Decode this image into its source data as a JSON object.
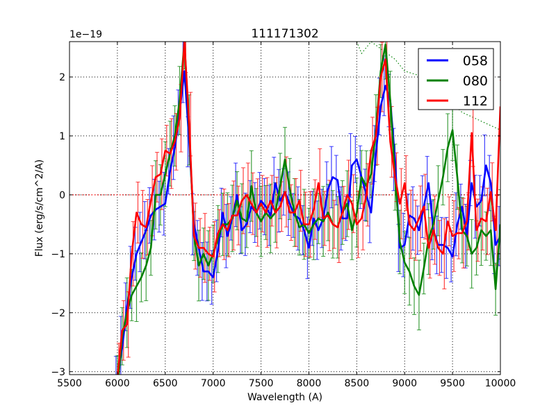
{
  "chart_data": {
    "type": "line",
    "title": "111171302",
    "xlabel": "Wavelength (A)",
    "ylabel": "Flux (erg/s/cm^2/A)",
    "y_offset_label": "1e−19",
    "xlim": [
      5500,
      10000
    ],
    "ylim": [
      -3.05,
      2.6
    ],
    "xticks": [
      5500,
      6000,
      6500,
      7000,
      7500,
      8000,
      8500,
      9000,
      9500,
      10000
    ],
    "xtick_labels": [
      "5500",
      "6000",
      "6500",
      "7000",
      "7500",
      "8000",
      "8500",
      "9000",
      "9500",
      "10000"
    ],
    "yticks": [
      -3,
      -2,
      -1,
      0,
      1,
      2
    ],
    "ytick_labels": [
      "−3",
      "−2",
      "−1",
      "0",
      "1",
      "2"
    ],
    "grid": true,
    "legend_position": "top-right",
    "x": [
      6000,
      6050,
      6100,
      6150,
      6200,
      6250,
      6300,
      6350,
      6400,
      6450,
      6500,
      6550,
      6600,
      6650,
      6700,
      6750,
      6800,
      6850,
      6900,
      6950,
      7000,
      7050,
      7100,
      7150,
      7200,
      7250,
      7300,
      7350,
      7400,
      7450,
      7500,
      7550,
      7600,
      7650,
      7700,
      7750,
      7800,
      7850,
      7900,
      7950,
      8000,
      8050,
      8100,
      8150,
      8200,
      8250,
      8300,
      8350,
      8400,
      8450,
      8500,
      8550,
      8600,
      8650,
      8700,
      8750,
      8800,
      8850,
      8900,
      8950,
      9000,
      9050,
      9100,
      9150,
      9200,
      9250,
      9300,
      9350,
      9400,
      9450,
      9500,
      9550,
      9600,
      9650,
      9700,
      9750,
      9800,
      9850,
      9900,
      9950,
      10000
    ],
    "series": [
      {
        "name": "058",
        "color": "#0000ff",
        "yerr_typical": 0.45,
        "values": [
          -3.1,
          -2.6,
          -1.9,
          -1.4,
          -1.0,
          -0.8,
          -0.6,
          -0.35,
          -0.25,
          -0.2,
          -0.15,
          0.4,
          0.8,
          1.4,
          2.1,
          0.9,
          -0.5,
          -0.9,
          -1.3,
          -1.3,
          -1.4,
          -0.95,
          -0.3,
          -0.7,
          -0.4,
          0.0,
          -0.6,
          -0.5,
          -0.2,
          -0.3,
          -0.1,
          -0.2,
          -0.35,
          0.2,
          -0.1,
          0.05,
          -0.15,
          -0.35,
          -0.4,
          -0.6,
          -0.9,
          -0.4,
          -0.6,
          -0.4,
          0.1,
          0.3,
          0.25,
          -0.4,
          -0.4,
          0.5,
          0.6,
          0.3,
          0.0,
          -0.3,
          0.7,
          1.5,
          1.85,
          1.6,
          0.6,
          -0.9,
          -0.85,
          -0.35,
          -0.4,
          -0.6,
          -0.2,
          0.2,
          -0.6,
          -0.85,
          -0.85,
          -0.9,
          -1.05,
          -0.5,
          -0.2,
          -0.7,
          0.2,
          -0.2,
          -0.1,
          0.5,
          0.2,
          -0.85,
          -0.7
        ]
      },
      {
        "name": "080",
        "color": "#008000",
        "yerr_typical": 0.5,
        "values": [
          -3.3,
          -2.4,
          -2.0,
          -1.7,
          -1.55,
          -1.4,
          -1.2,
          -0.9,
          0.0,
          0.0,
          0.35,
          0.7,
          1.0,
          1.6,
          2.6,
          1.1,
          -0.7,
          -1.2,
          -1.0,
          -1.2,
          -1.0,
          -0.75,
          -0.5,
          -0.5,
          -0.4,
          -0.1,
          -0.4,
          -0.45,
          0.15,
          -0.3,
          -0.45,
          -0.3,
          -0.4,
          -0.3,
          0.15,
          0.6,
          0.1,
          -0.3,
          -0.55,
          -0.5,
          -0.65,
          -0.5,
          -0.4,
          -0.45,
          -0.3,
          -0.5,
          -0.55,
          -0.3,
          -0.15,
          -0.6,
          -0.3,
          0.3,
          0.15,
          0.35,
          1.1,
          2.1,
          2.55,
          1.6,
          0.3,
          -0.8,
          -1.15,
          -1.3,
          -1.55,
          -1.7,
          -1.25,
          -0.75,
          -0.5,
          -0.1,
          0.3,
          0.8,
          1.1,
          0.3,
          -0.6,
          -0.7,
          -1.0,
          -0.9,
          -0.6,
          -0.7,
          -0.6,
          -1.6,
          -0.5
        ]
      },
      {
        "name": "112",
        "color": "#ff0000",
        "yerr_typical": 0.5,
        "values": [
          -3.1,
          -2.3,
          -2.2,
          -1.0,
          -0.3,
          -0.5,
          -0.55,
          -0.1,
          0.3,
          0.35,
          0.75,
          0.7,
          0.9,
          1.3,
          2.6,
          1.2,
          -0.7,
          -0.9,
          -0.9,
          -1.0,
          -1.05,
          -0.65,
          -0.5,
          -0.6,
          -0.35,
          -0.35,
          -0.1,
          0.0,
          -0.15,
          -0.3,
          -0.15,
          -0.3,
          -0.1,
          -0.3,
          -0.2,
          0.05,
          -0.3,
          -0.3,
          -0.1,
          -0.5,
          -0.5,
          -0.25,
          0.2,
          -0.4,
          -0.35,
          -0.5,
          -0.55,
          -0.3,
          0.0,
          -0.15,
          -0.5,
          -0.4,
          0.0,
          0.75,
          1.0,
          2.0,
          2.3,
          0.9,
          0.3,
          -0.15,
          0.2,
          -0.5,
          -0.6,
          -0.4,
          -0.2,
          -0.9,
          -0.6,
          -0.9,
          -1.0,
          -0.45,
          -0.7,
          -0.65,
          -0.65,
          -0.45,
          1.05,
          -0.6,
          -0.4,
          -0.45,
          0.05,
          -0.6,
          1.5
        ]
      }
    ],
    "reference_lines": [
      {
        "name": "zero-line",
        "color": "#ff0000",
        "style": "dotted",
        "x": [
          5500,
          10000
        ],
        "y": [
          0,
          0
        ]
      },
      {
        "name": "green-dotted",
        "color": "#008000",
        "style": "dotted",
        "x": [
          8500,
          8550,
          8650,
          8900,
          9000,
          9200,
          9600,
          10000
        ],
        "y": [
          2.6,
          2.4,
          2.6,
          2.3,
          2.1,
          2.0,
          1.4,
          1.1
        ]
      }
    ]
  }
}
